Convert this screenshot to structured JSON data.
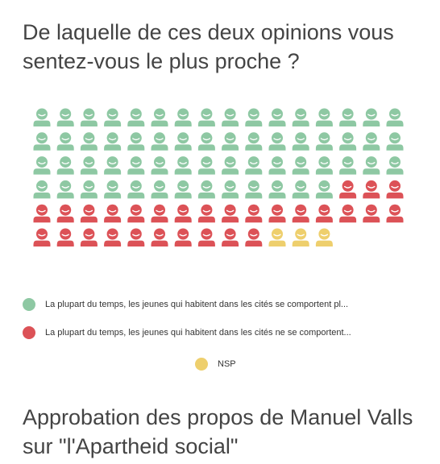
{
  "chart_data": {
    "type": "pictogram",
    "title": "De laquelle de ces deux opinions vous sentez-vous le plus proche ?",
    "icon": "person-icon",
    "columns": 16,
    "series": [
      {
        "name": "La plupart du temps, les jeunes qui habitent dans les cités se comportent pl...",
        "value": 61,
        "color": "#8ec8a3"
      },
      {
        "name": "La plupart du temps, les jeunes qui habitent dans les cités ne se comportent...",
        "value": 29,
        "color": "#dc5257"
      },
      {
        "name": "NSP",
        "value": 3,
        "color": "#eecf6d"
      }
    ],
    "legend_position": "bottom"
  },
  "next_section": {
    "title": "Approbation des propos de Manuel Valls sur \"l'Apartheid social\""
  }
}
